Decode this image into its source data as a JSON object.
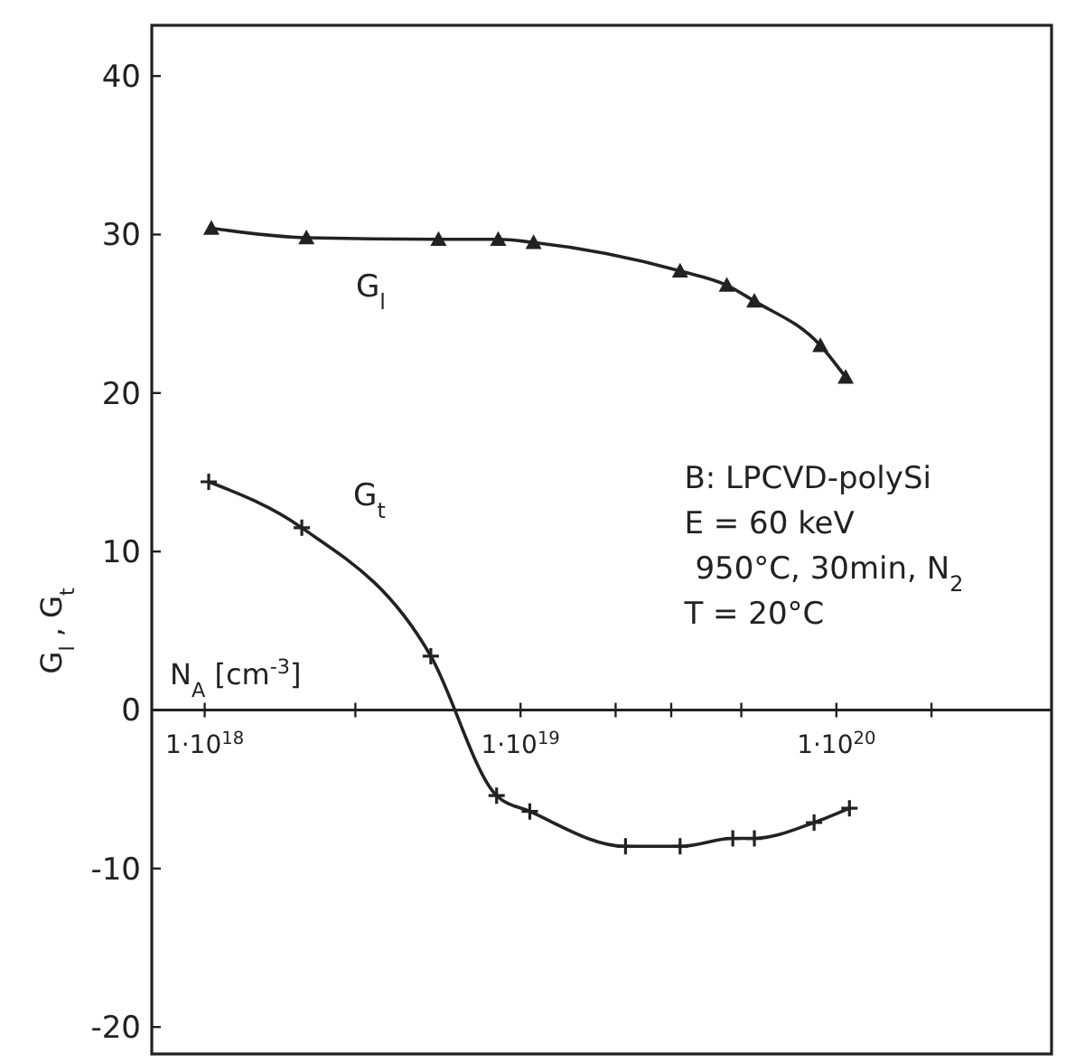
{
  "chart_data": {
    "type": "line",
    "xlabel": "N$_{A}$ [cm$^{-3}$]",
    "ylabel": "G$_{l}$ , G$_{t}$",
    "log": "x",
    "xlim": [
      6.8e+17,
      4.8e+20
    ],
    "ylim": [
      -21.7,
      43.2
    ],
    "xticks": [
      {
        "value": 1e+18,
        "label": "1·10$^{18}$"
      },
      {
        "value": 3e+18,
        "label": null
      },
      {
        "value": 1e+19,
        "label": "1·10$^{19}$"
      },
      {
        "value": 2e+19,
        "label": null
      },
      {
        "value": 3e+19,
        "label": null
      },
      {
        "value": 5e+19,
        "label": null
      },
      {
        "value": 1e+20,
        "label": "1·10$^{20}$"
      },
      {
        "value": 2e+20,
        "label": null
      }
    ],
    "yticks": [
      -20,
      -10,
      0,
      10,
      20,
      30,
      40
    ],
    "line_style": "solid",
    "series": [
      {
        "name": "G$_{l}$",
        "color": "#222222",
        "marker": "triangle",
        "x": [
          1.05e+18,
          2.1e+18,
          5.5e+18,
          8.5e+18,
          1.1e+19,
          3.2e+19,
          4.5e+19,
          5.5e+19,
          8.9e+19,
          1.07e+20
        ],
        "values": [
          30.4,
          29.8,
          29.7,
          29.7,
          29.5,
          27.7,
          26.8,
          25.8,
          23.0,
          21.0
        ]
      },
      {
        "name": "G$_{t}$",
        "color": "#222222",
        "marker": "cross",
        "x": [
          1.03e+18,
          2.03e+18,
          5.2e+18,
          8.4e+18,
          1.07e+19,
          2.15e+19,
          3.2e+19,
          4.7e+19,
          5.5e+19,
          8.5e+19,
          1.1e+20
        ],
        "values": [
          14.4,
          11.5,
          3.4,
          -5.4,
          -6.4,
          -8.6,
          -8.6,
          -8.1,
          -8.1,
          -7.1,
          -6.2
        ]
      }
    ],
    "annotations": [
      "B: LPCVD-polySi",
      "E = 60 keV",
      "950°C, 30min, N$_{2}$",
      "T = 20°C"
    ]
  }
}
